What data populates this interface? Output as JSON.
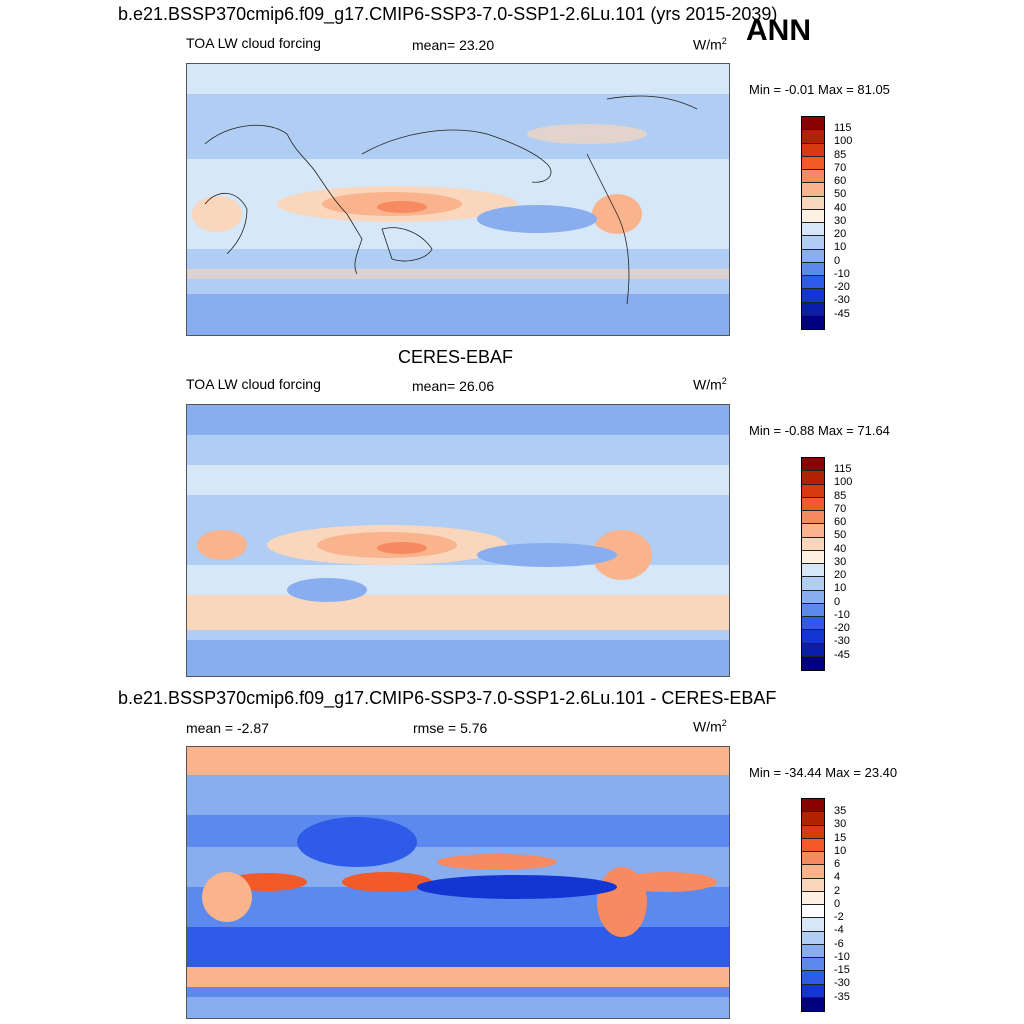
{
  "page_title": "b.e21.BSSP370cmip6.f09_g17.CMIP6-SSP3-7.0-SSP1-2.6Lu.101 (yrs 2015-2039)",
  "season": "ANN",
  "panels": [
    {
      "title": "",
      "variable": "TOA LW cloud forcing",
      "mean_label": "mean=  23.20",
      "units": "W/m",
      "units_sup": "2",
      "minmax": "Min =  -0.01 Max =  81.05",
      "colorbar_labels": [
        "115",
        "100",
        "85",
        "70",
        "60",
        "50",
        "40",
        "30",
        "20",
        "10",
        "0",
        "-10",
        "-20",
        "-30",
        "-45"
      ]
    },
    {
      "title": "CERES-EBAF",
      "variable": "TOA LW cloud forcing",
      "mean_label": "mean=  26.06",
      "units": "W/m",
      "units_sup": "2",
      "minmax": "Min =  -0.88 Max =  71.64",
      "colorbar_labels": [
        "115",
        "100",
        "85",
        "70",
        "60",
        "50",
        "40",
        "30",
        "20",
        "10",
        "0",
        "-10",
        "-20",
        "-30",
        "-45"
      ]
    },
    {
      "title": "b.e21.BSSP370cmip6.f09_g17.CMIP6-SSP3-7.0-SSP1-2.6Lu.101 - CERES-EBAF",
      "mean_label": "mean =  -2.87",
      "rmse_label": "rmse =   5.76",
      "units": "W/m",
      "units_sup": "2",
      "minmax": "Min = -34.44 Max =  23.40",
      "colorbar_labels": [
        "35",
        "30",
        "15",
        "10",
        "6",
        "4",
        "2",
        "0",
        "-2",
        "-4",
        "-6",
        "-10",
        "-15",
        "-30",
        "-35"
      ]
    }
  ],
  "colors": {
    "abs_scale": [
      "#8b0000",
      "#b22200",
      "#d83a10",
      "#f25a2a",
      "#f78a60",
      "#f9b48e",
      "#fad6bc",
      "#fef0e2",
      "#d6e7f8",
      "#b0cdf3",
      "#88aef0",
      "#5b89ee",
      "#2e5ce8",
      "#1336d2",
      "#0a1eaa",
      "#000080"
    ],
    "diff_scale": [
      "#8b0000",
      "#b22200",
      "#d83a10",
      "#f25a2a",
      "#f78a60",
      "#f9b48e",
      "#fad6bc",
      "#fef0e2",
      "#ffffff",
      "#d6e7f8",
      "#b0cdf3",
      "#88aef0",
      "#5b89ee",
      "#2e5ce8",
      "#1336d2",
      "#000080"
    ]
  }
}
